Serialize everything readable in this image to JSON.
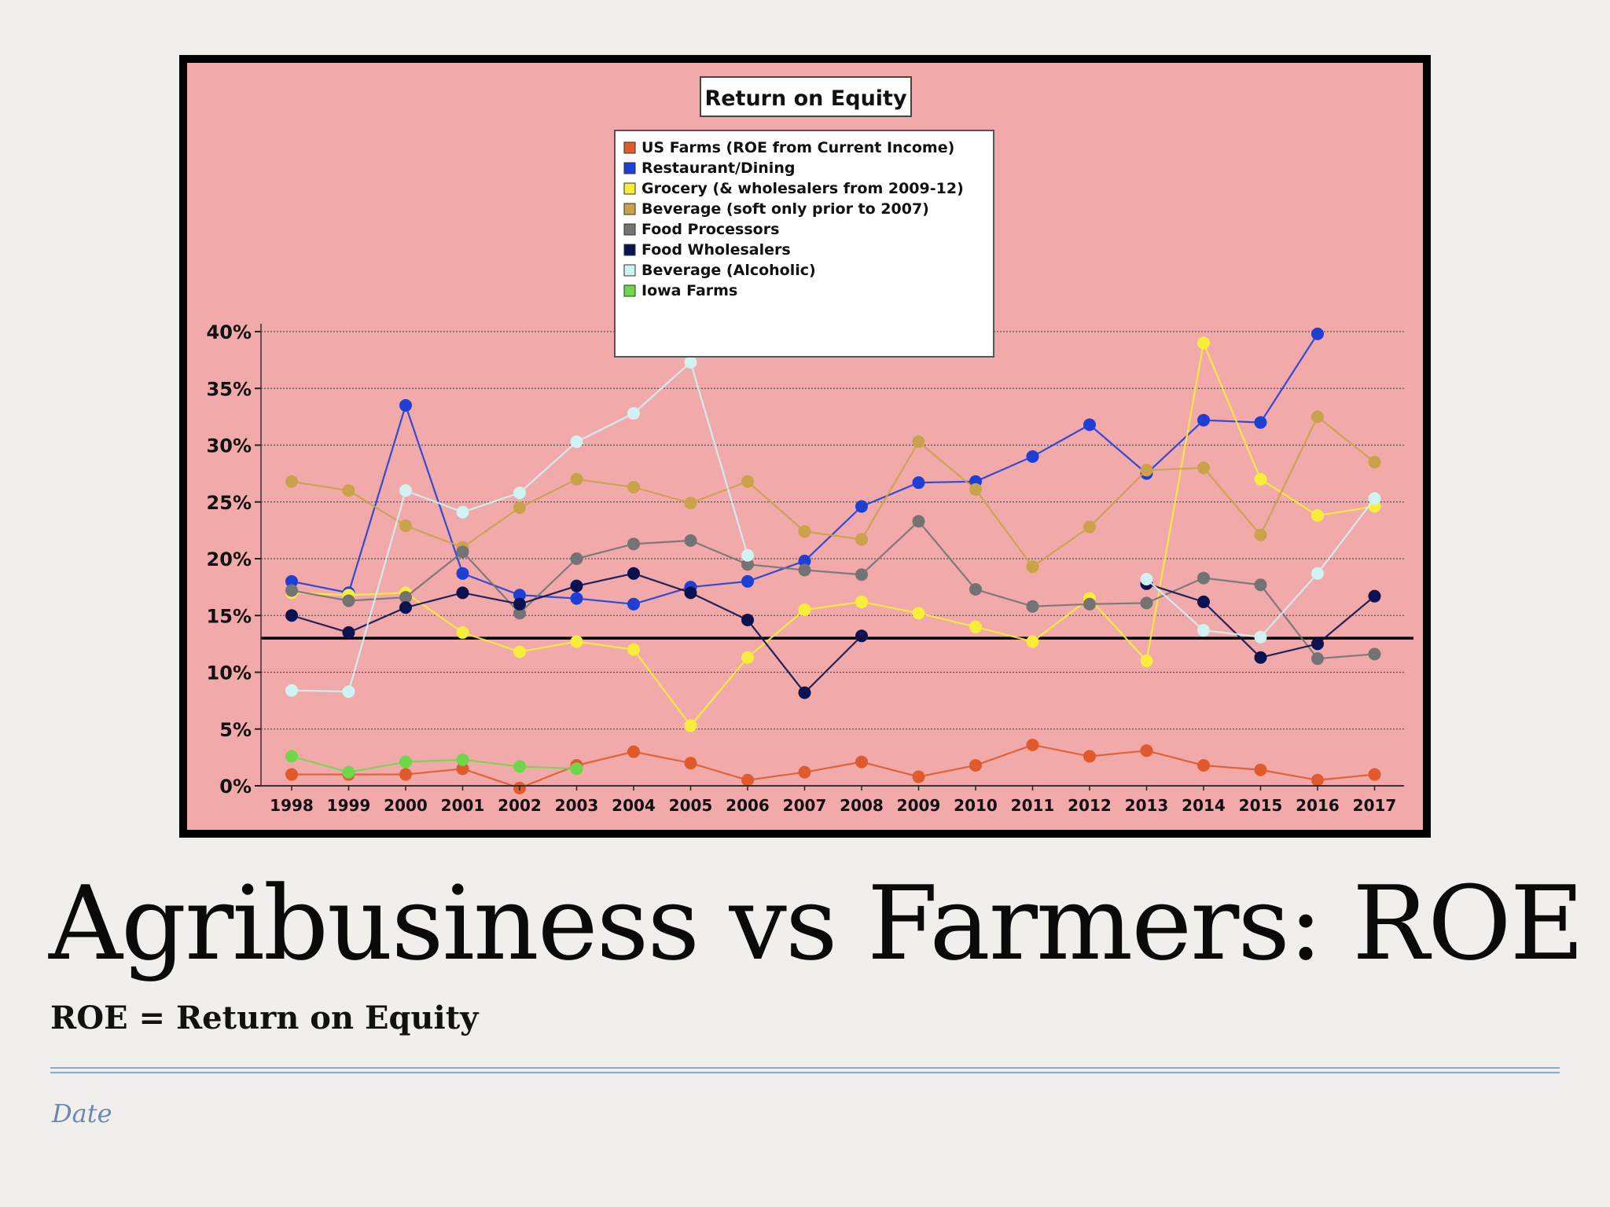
{
  "slide": {
    "title": "Agribusiness vs Farmers:  ROE",
    "subtitle": "ROE = Return on Equity",
    "footer_date": "Date"
  },
  "chart_data": {
    "type": "line",
    "title": "Return on Equity",
    "xlabel": "",
    "ylabel": "",
    "ylim": [
      0,
      40
    ],
    "y_ticks": [
      "0%",
      "5%",
      "10%",
      "15%",
      "20%",
      "25%",
      "30%",
      "35%",
      "40%"
    ],
    "grid": true,
    "legend_position": "top-center",
    "background_color": "#f1aaa9",
    "reference_line": 13,
    "categories": [
      "1998",
      "1999",
      "2000",
      "2001",
      "2002",
      "2003",
      "2004",
      "2005",
      "2006",
      "2007",
      "2008",
      "2009",
      "2010",
      "2011",
      "2012",
      "2013",
      "2014",
      "2015",
      "2016",
      "2017"
    ],
    "series": [
      {
        "name": "US Farms  (ROE from Current Income)",
        "color": "#e05a2b",
        "values": [
          1,
          1,
          1,
          1.5,
          -0.2,
          1.8,
          3,
          2,
          0.5,
          1.2,
          2.1,
          0.8,
          1.8,
          3.6,
          2.6,
          3.1,
          1.8,
          1.4,
          0.5,
          1
        ]
      },
      {
        "name": "Restaurant/Dining",
        "color": "#1e3fd6",
        "values": [
          18,
          17,
          33.5,
          18.7,
          16.8,
          16.5,
          16,
          17.5,
          18,
          19.8,
          24.6,
          26.7,
          26.8,
          29,
          31.8,
          27.5,
          32.2,
          32,
          39.8,
          null
        ]
      },
      {
        "name": "Grocery (& wholesalers from 2009-12)",
        "color": "#f8ee3a",
        "values": [
          17,
          16.8,
          17,
          13.5,
          11.8,
          12.7,
          12,
          5.3,
          11.3,
          15.5,
          16.2,
          15.2,
          14,
          12.7,
          16.5,
          11,
          39,
          27,
          23.8,
          24.6
        ]
      },
      {
        "name": "Beverage (soft only prior to 2007)",
        "color": "#c9a24a",
        "values": [
          26.8,
          26,
          22.9,
          21,
          24.5,
          27,
          26.3,
          24.9,
          26.8,
          22.4,
          21.7,
          30.3,
          26.1,
          19.3,
          22.8,
          27.8,
          28,
          22.1,
          32.5,
          28.5
        ]
      },
      {
        "name": "Food Processors",
        "color": "#737373",
        "values": [
          17.2,
          16.3,
          16.6,
          20.6,
          15.2,
          20,
          21.3,
          21.6,
          19.5,
          19,
          18.6,
          23.3,
          17.3,
          15.8,
          16,
          16.1,
          18.3,
          17.7,
          11.2,
          11.6
        ]
      },
      {
        "name": "Food Wholesalers",
        "color": "#0b1250",
        "values": [
          15,
          13.5,
          15.7,
          17,
          16,
          17.6,
          18.7,
          17,
          14.6,
          8.2,
          13.2,
          null,
          null,
          null,
          null,
          17.8,
          16.2,
          11.3,
          12.5,
          16.7
        ]
      },
      {
        "name": "Beverage (Alcoholic)",
        "color": "#cff2f2",
        "values": [
          8.4,
          8.3,
          26,
          24.1,
          25.8,
          30.3,
          32.8,
          37.3,
          20.3,
          null,
          null,
          null,
          null,
          null,
          null,
          18.2,
          13.7,
          13.1,
          18.7,
          25.3
        ]
      },
      {
        "name": "Iowa Farms",
        "color": "#6ed84a",
        "values": [
          2.6,
          1.2,
          2.1,
          2.3,
          1.7,
          1.5,
          null,
          null,
          null,
          null,
          null,
          null,
          null,
          null,
          null,
          null,
          null,
          null,
          null,
          null
        ]
      }
    ]
  }
}
